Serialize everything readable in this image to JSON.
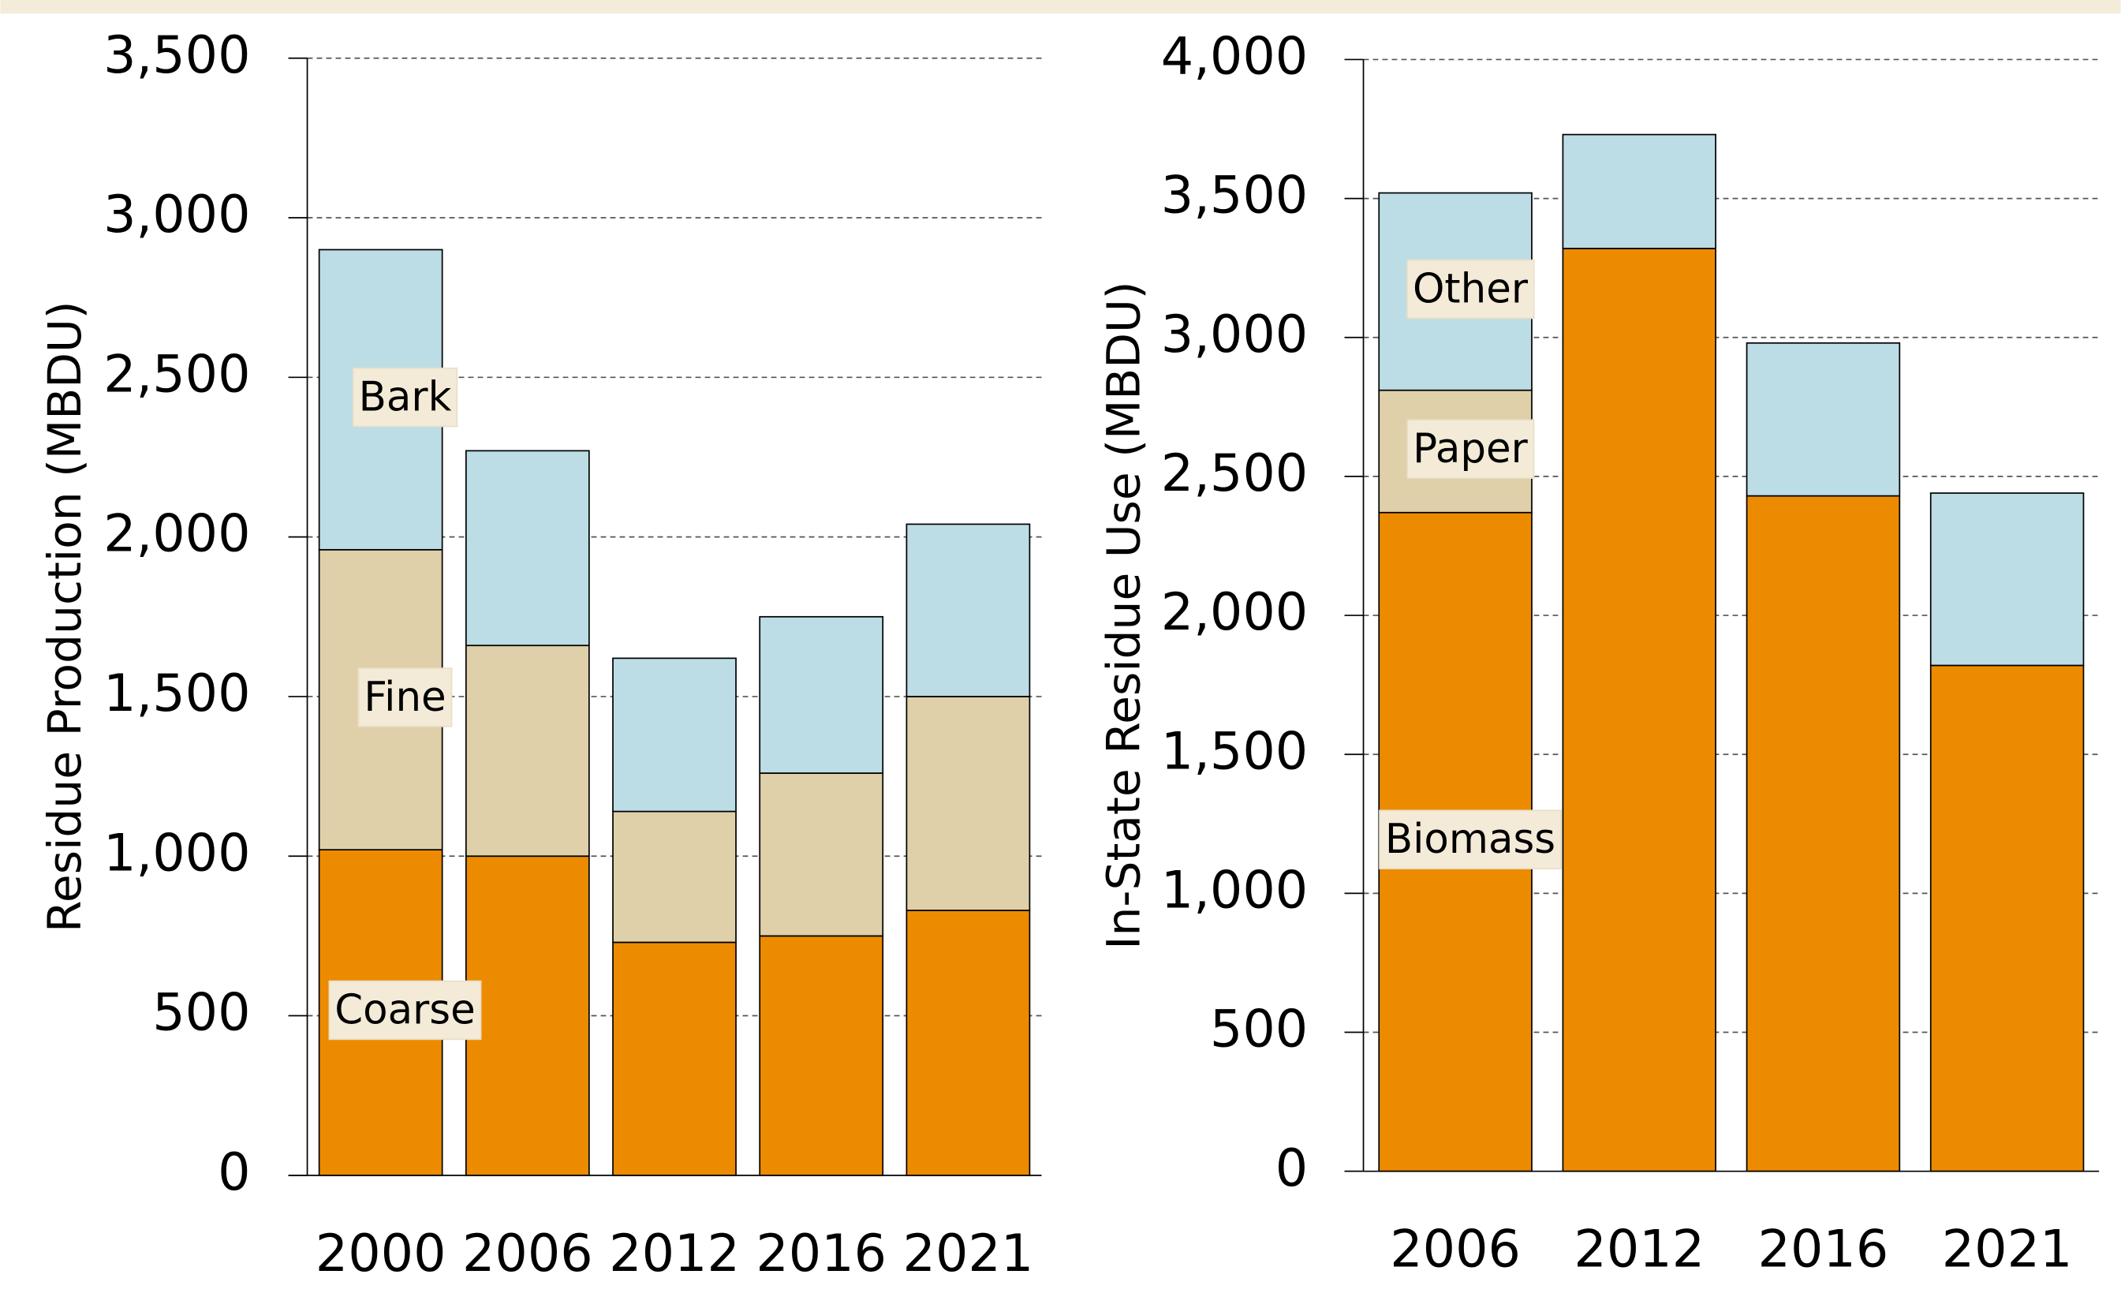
{
  "chart_data": [
    {
      "type": "bar",
      "stacked": true,
      "ylabel": "Residue Production (MBDU)",
      "categories": [
        "2000",
        "2006",
        "2012",
        "2016",
        "2021"
      ],
      "series": [
        {
          "name": "Coarse",
          "color": "#ed8b00",
          "values": [
            1020,
            1000,
            730,
            750,
            830
          ]
        },
        {
          "name": "Fine",
          "color": "#dfd0a9",
          "values": [
            940,
            660,
            410,
            510,
            670
          ]
        },
        {
          "name": "Bark",
          "color": "#bcdde5",
          "values": [
            940,
            610,
            480,
            490,
            540
          ]
        }
      ],
      "ylim": [
        0,
        3500
      ],
      "yticks": [
        0,
        500,
        {
          "value": 1000,
          "label": "1,000"
        },
        {
          "value": 1500,
          "label": "1,500"
        },
        {
          "value": 2000,
          "label": "2,000"
        },
        {
          "value": 2500,
          "label": "2,500"
        },
        {
          "value": 3000,
          "label": "3,000"
        },
        {
          "value": 3500,
          "label": "3,500"
        }
      ],
      "grid": true
    },
    {
      "type": "bar",
      "stacked": true,
      "ylabel": "In-State Residue Use (MBDU)",
      "categories": [
        "2006",
        "2012",
        "2016",
        "2021"
      ],
      "series": [
        {
          "name": "Biomass",
          "color": "#ed8b00",
          "values": [
            2370,
            3320,
            2430,
            1820
          ]
        },
        {
          "name": "Paper",
          "color": "#dfd0a9",
          "values": [
            440,
            0,
            0,
            0
          ]
        },
        {
          "name": "Other",
          "color": "#bcdde5",
          "values": [
            710,
            410,
            550,
            620
          ]
        }
      ],
      "ylim": [
        0,
        4000
      ],
      "yticks": [
        0,
        500,
        {
          "value": 1000,
          "label": "1,000"
        },
        {
          "value": 1500,
          "label": "1,500"
        },
        {
          "value": 2000,
          "label": "2,000"
        },
        {
          "value": 2500,
          "label": "2,500"
        },
        {
          "value": 3000,
          "label": "3,000"
        },
        {
          "value": 3500,
          "label": "3,500"
        },
        {
          "value": 4000,
          "label": "4,000"
        }
      ],
      "grid": true
    }
  ]
}
